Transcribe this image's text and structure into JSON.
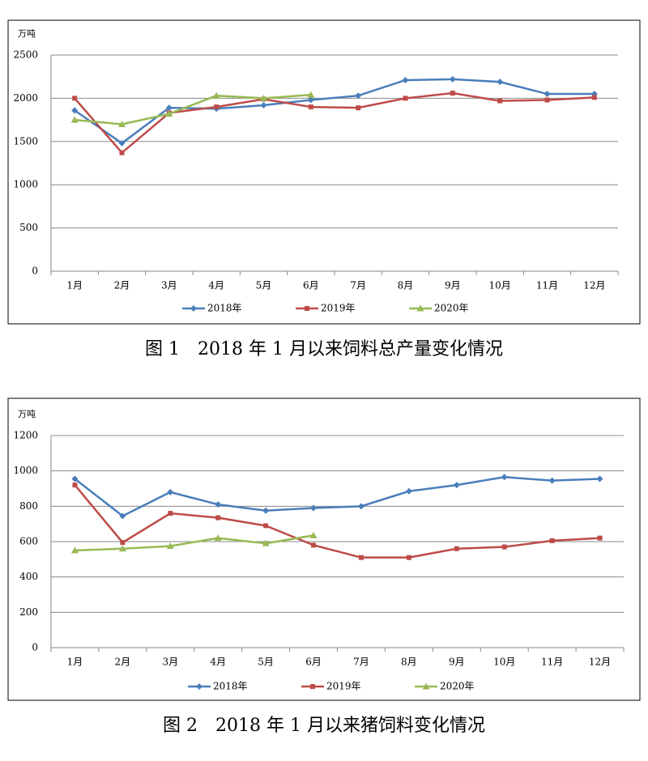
{
  "chart_data": [
    {
      "type": "line",
      "caption": "图 1　2018 年 1 月以来饲料总产量变化情况",
      "y_label": "万吨",
      "categories": [
        "1月",
        "2月",
        "3月",
        "4月",
        "5月",
        "6月",
        "7月",
        "8月",
        "9月",
        "10月",
        "11月",
        "12月"
      ],
      "ylim": [
        0,
        2500
      ],
      "yticks": [
        0,
        500,
        1000,
        1500,
        2000,
        2500
      ],
      "grid": true,
      "series": [
        {
          "name": "2018年",
          "color": "#4a7ebb",
          "marker": "diamond",
          "values": [
            1860,
            1480,
            1890,
            1880,
            1920,
            1980,
            2030,
            2210,
            2220,
            2190,
            2050,
            2050
          ]
        },
        {
          "name": "2019年",
          "color": "#be4b48",
          "marker": "square",
          "values": [
            2000,
            1370,
            1830,
            1900,
            1990,
            1900,
            1890,
            2000,
            2060,
            1970,
            1980,
            2010
          ]
        },
        {
          "name": "2020年",
          "color": "#98b954",
          "marker": "triangle",
          "values": [
            1750,
            1700,
            1820,
            2030,
            2000,
            2040,
            null,
            null,
            null,
            null,
            null,
            null
          ]
        }
      ]
    },
    {
      "type": "line",
      "caption": "图 2　2018 年 1 月以来猪饲料变化情况",
      "y_label": "万吨",
      "categories": [
        "1月",
        "2月",
        "3月",
        "4月",
        "5月",
        "6月",
        "7月",
        "8月",
        "9月",
        "10月",
        "11月",
        "12月"
      ],
      "ylim": [
        0,
        1200
      ],
      "yticks": [
        0,
        200,
        400,
        600,
        800,
        1000,
        1200
      ],
      "grid": true,
      "series": [
        {
          "name": "2018年",
          "color": "#4a7ebb",
          "marker": "diamond",
          "values": [
            955,
            745,
            880,
            810,
            775,
            790,
            800,
            885,
            920,
            965,
            945,
            955
          ]
        },
        {
          "name": "2019年",
          "color": "#be4b48",
          "marker": "square",
          "values": [
            920,
            595,
            760,
            735,
            690,
            580,
            510,
            510,
            560,
            570,
            605,
            620
          ]
        },
        {
          "name": "2020年",
          "color": "#98b954",
          "marker": "triangle",
          "values": [
            550,
            560,
            575,
            620,
            590,
            635,
            null,
            null,
            null,
            null,
            null,
            null
          ]
        }
      ]
    }
  ]
}
